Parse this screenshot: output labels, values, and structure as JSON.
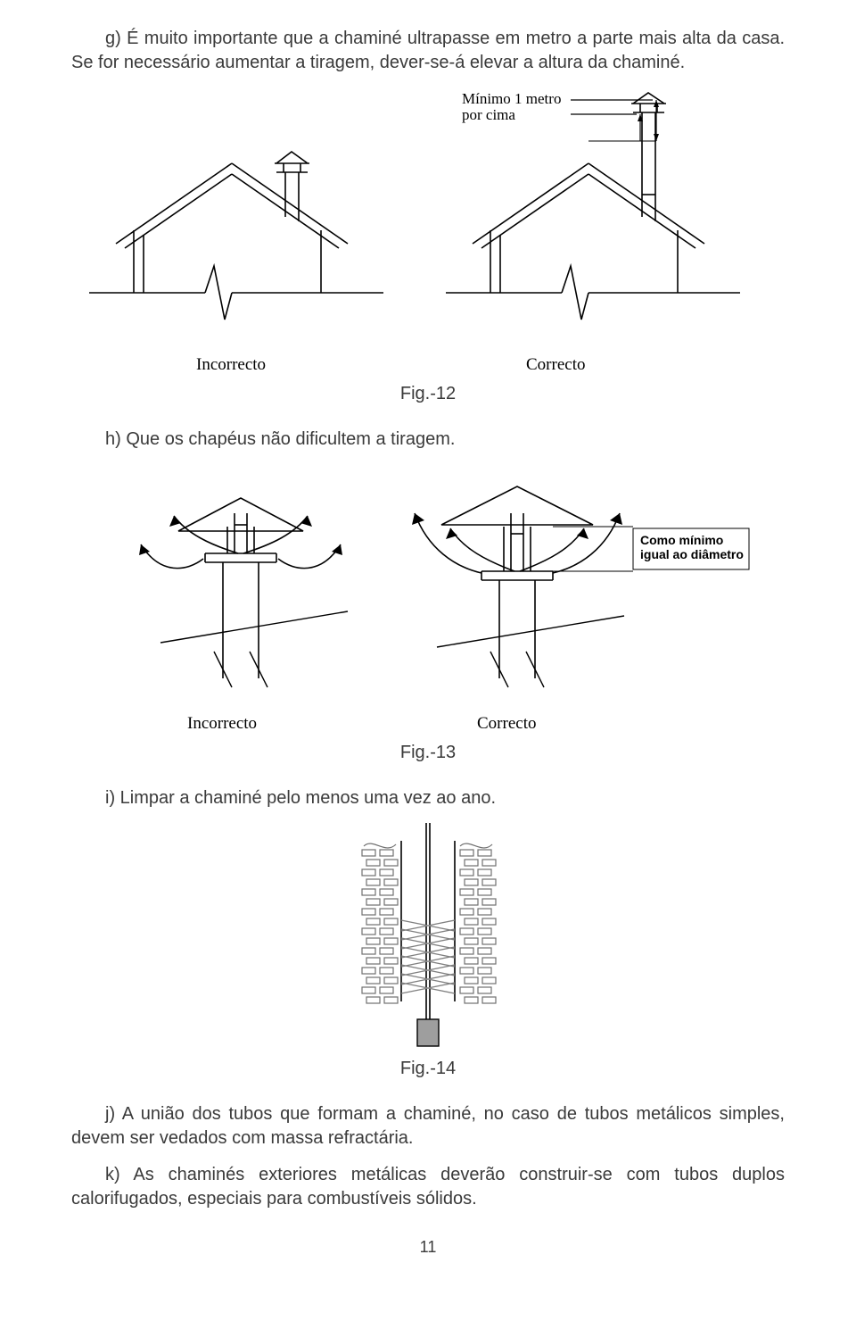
{
  "paragraphs": {
    "g": "g) É muito importante que a chaminé ultrapasse em metro a parte mais alta da casa. Se for necessário aumentar a tiragem, dever-se-á elevar a altura da chaminé.",
    "h": "h) Que os chapéus não dificultem a tiragem.",
    "i": "i) Limpar a chaminé pelo menos uma vez ao ano.",
    "j": "j) A união dos tubos que formam a chaminé, no caso de tubos metálicos simples, devem ser vedados com massa refractária.",
    "k": "k) As chaminés exteriores metálicas deverão construir-se com tubos duplos calorifugados, especiais para combustíveis sólidos."
  },
  "captions": {
    "fig12": "Fig.-12",
    "fig13": "Fig.-13",
    "fig14": "Fig.-14"
  },
  "labels": {
    "incorrect": "Incorrecto",
    "correct": "Correcto",
    "min1m_line1": "Mínimo 1 metro",
    "min1m_line2": "por cima",
    "min_diam_line1": "Como mínimo",
    "min_diam_line2": "igual ao diâmetro"
  },
  "page_number": "11",
  "style": {
    "line_color": "#000000",
    "line_width_thin": 1.2,
    "line_width_med": 1.6,
    "fill_white": "#ffffff",
    "fill_gray": "#9e9e9e",
    "grid_gray": "#bdbdbd",
    "brush_gray": "#808080"
  }
}
